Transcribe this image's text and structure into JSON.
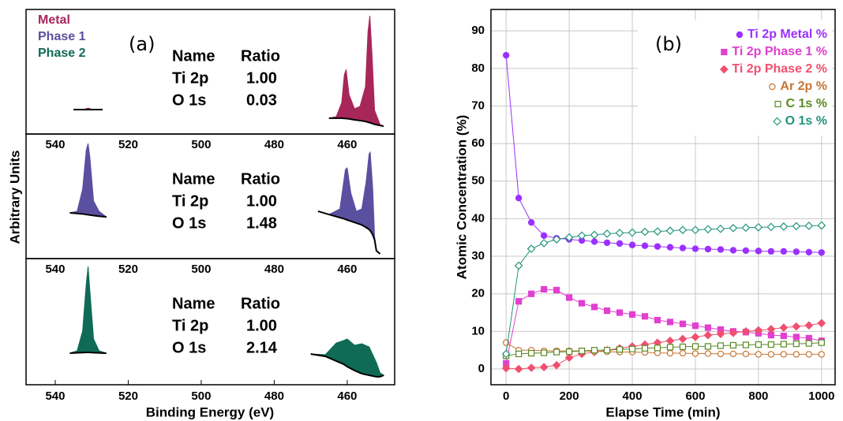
{
  "chart_data": [
    {
      "type": "area",
      "panel_label": "(a)",
      "xlabel": "Binding Energy (eV)",
      "ylabel": "Arbitrary Units",
      "xlim": [
        548,
        447
      ],
      "xticks": [
        540,
        520,
        500,
        480,
        460
      ],
      "ylim": [
        0,
        100
      ],
      "panels": [
        {
          "series": [
            {
              "name": "Metal",
              "color": "#a8275a",
              "x": [
                535,
                532,
                531,
                530,
                527,
                500,
                465,
                463,
                461.5,
                460.8,
                460.3,
                459.5,
                458,
                456.5,
                455,
                454.3,
                453.8,
                453.2,
                452.5,
                451,
                450
              ],
              "values": [
                19.6,
                19.8,
                20.9,
                19.8,
                19.6,
                null,
                12.7,
                13.9,
                25.3,
                47.5,
                51.9,
                31.6,
                20.3,
                22.2,
                38,
                82.3,
                94.9,
                63.3,
                19,
                7.6,
                6.3
              ],
              "background": [
                19.6,
                19.6,
                19.6,
                19.6,
                19.6,
                null,
                12.7,
                12.7,
                12.7,
                12.5,
                12.4,
                12.2,
                11.4,
                10.8,
                10.1,
                9.5,
                9.1,
                8.5,
                7.8,
                6.9,
                6.3
              ]
            }
          ],
          "table": {
            "header": [
              "Name",
              "Ratio"
            ],
            "rows": [
              [
                "Ti 2p",
                "1.00"
              ],
              [
                "O 1s",
                "0.03"
              ]
            ]
          }
        },
        {
          "series": [
            {
              "name": "Phase 1",
              "color": "#5b4fa0",
              "x": [
                536,
                534,
                532.5,
                531.5,
                531,
                530.5,
                529.5,
                528,
                526,
                500,
                468,
                465,
                462,
                460.5,
                460,
                459,
                457.5,
                456,
                454.8,
                454,
                453.7,
                453,
                452.5,
                452,
                451
              ],
              "values": [
                36.7,
                38,
                55.7,
                87.3,
                92.4,
                81,
                46.2,
                38,
                33.5,
                null,
                38,
                35.4,
                39.9,
                71.5,
                72.8,
                52.5,
                38,
                39.9,
                62,
                84.2,
                85.4,
                55.7,
                17.7,
                6.3,
                3.8
              ],
              "background": [
                36.7,
                36.2,
                35.8,
                35.4,
                35.2,
                35,
                34.6,
                34,
                33.5,
                null,
                38,
                35.4,
                32.9,
                31.6,
                31,
                30,
                28.5,
                27,
                25,
                23.4,
                22.5,
                19,
                15,
                6.3,
                3.8
              ]
            }
          ],
          "table": {
            "header": [
              "Name",
              "Ratio"
            ],
            "rows": [
              [
                "Ti 2p",
                "1.00"
              ],
              [
                "O 1s",
                "1.48"
              ]
            ]
          }
        },
        {
          "series": [
            {
              "name": "Phase 2",
              "color": "#0f6b55",
              "x": [
                536,
                534,
                532.5,
                531.5,
                531,
                530.5,
                529.5,
                528,
                526,
                500,
                470,
                466,
                463,
                461,
                460,
                458,
                456,
                454,
                452,
                451,
                450
              ],
              "values": [
                25,
                26.9,
                42.5,
                80,
                93.8,
                73.8,
                36.3,
                26.9,
                25,
                null,
                24.4,
                23.8,
                33.1,
                35,
                36.3,
                31.3,
                32.5,
                30,
                17.5,
                9.4,
                7.5
              ],
              "background": [
                25,
                25.3,
                25.5,
                25.6,
                25.6,
                25.6,
                25.4,
                25.2,
                25,
                null,
                24.4,
                22.5,
                18.8,
                16.3,
                14.4,
                11.3,
                8.8,
                7.5,
                6.3,
                6.3,
                7.5
              ]
            }
          ],
          "table": {
            "header": [
              "Name",
              "Ratio"
            ],
            "rows": [
              [
                "Ti 2p",
                "1.00"
              ],
              [
                "O 1s",
                "2.14"
              ]
            ]
          }
        }
      ]
    },
    {
      "type": "line",
      "panel_label": "(b)",
      "xlabel": "Elapse Time (min)",
      "ylabel": "Atomic Concentration (%)",
      "xlim": [
        -48,
        1043
      ],
      "xticks": [
        0,
        200,
        400,
        600,
        800,
        1000
      ],
      "ylim": [
        -4.2,
        95.7
      ],
      "yticks": [
        0,
        10,
        20,
        30,
        40,
        50,
        60,
        70,
        80,
        90
      ],
      "grid": true,
      "legend": "upper right",
      "x": [
        0,
        40,
        80,
        120,
        160,
        200,
        240,
        280,
        320,
        360,
        400,
        440,
        480,
        520,
        560,
        600,
        640,
        680,
        720,
        760,
        800,
        840,
        880,
        920,
        960,
        1000
      ],
      "series": [
        {
          "name": "Ti 2p Metal %",
          "color": "#9b30ff",
          "marker": "circle",
          "filled": true,
          "values": [
            83.5,
            45.5,
            39,
            35.5,
            34.8,
            34.5,
            34.2,
            33.9,
            33.6,
            33.4,
            33,
            32.8,
            32.6,
            32.4,
            32.2,
            32,
            31.9,
            31.8,
            31.6,
            31.5,
            31.4,
            31.3,
            31.3,
            31.2,
            31.1,
            31
          ]
        },
        {
          "name": "Ti 2p Phase 1 %",
          "color": "#e040d0",
          "marker": "square",
          "filled": true,
          "values": [
            1.5,
            18,
            20,
            21.2,
            21,
            19,
            17.5,
            16.5,
            15.5,
            15,
            14.5,
            14,
            13,
            12.5,
            12,
            11.5,
            11,
            10.5,
            10,
            9.8,
            9.5,
            9,
            8.8,
            8.5,
            8.2,
            7.5
          ]
        },
        {
          "name": "Ti 2p Phase 2 %",
          "color": "#f05070",
          "marker": "diamond",
          "filled": true,
          "values": [
            0.2,
            0,
            0.3,
            0.5,
            1,
            3,
            4,
            4.5,
            5,
            5.5,
            6,
            6.5,
            7,
            7.5,
            8,
            8.5,
            9,
            9.3,
            9.6,
            10,
            10.3,
            10.6,
            11,
            11.3,
            11.6,
            12.2
          ]
        },
        {
          "name": "Ar 2p %",
          "color": "#c87533",
          "marker": "circle",
          "filled": false,
          "values": [
            7,
            5,
            5,
            4.8,
            4.8,
            4.8,
            4.8,
            4.7,
            4.6,
            4.5,
            4.5,
            4.4,
            4.3,
            4.2,
            4.2,
            4.1,
            4.1,
            4,
            4,
            4,
            3.9,
            3.9,
            3.9,
            3.9,
            3.9,
            3.9
          ]
        },
        {
          "name": "C 1s %",
          "color": "#5a8a20",
          "marker": "square",
          "filled": false,
          "values": [
            3.5,
            4,
            4.2,
            4.3,
            4.5,
            4.6,
            4.8,
            5,
            5,
            5.2,
            5.3,
            5.5,
            5.6,
            5.8,
            5.9,
            6,
            6,
            6.2,
            6.3,
            6.4,
            6.5,
            6.5,
            6.6,
            6.7,
            6.8,
            7
          ]
        },
        {
          "name": "O 1s %",
          "color": "#20957a",
          "marker": "diamond",
          "filled": false,
          "values": [
            4,
            27.5,
            32,
            33.5,
            34.5,
            35,
            35.5,
            35.7,
            36,
            36.2,
            36.3,
            36.5,
            36.6,
            36.8,
            37,
            37,
            37.2,
            37.3,
            37.5,
            37.6,
            37.7,
            37.8,
            37.9,
            38,
            38.1,
            38.2
          ]
        }
      ]
    }
  ]
}
